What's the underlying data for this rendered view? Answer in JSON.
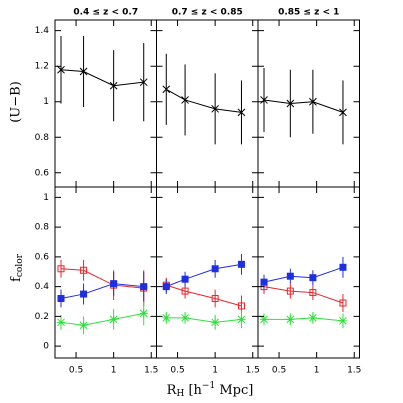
{
  "xlabel": [
    "R",
    "H",
    " [h",
    "−1",
    " Mpc]"
  ],
  "top_ylabel": "(U−B)",
  "bottom_ylabel": [
    "f",
    "color"
  ],
  "chart_data": [
    {
      "type": "line",
      "title": "0.4 ≤ z < 0.7",
      "x": [
        0.3,
        0.6,
        1.0,
        1.4
      ],
      "xlim": [
        0.22,
        1.57
      ],
      "ylim": [
        0.52,
        1.46
      ],
      "xticks": [
        0.5,
        1,
        1.5
      ],
      "yticks": [
        0.6,
        0.8,
        1,
        1.2,
        1.4
      ],
      "show_xticklabels": false,
      "show_yticklabels": true,
      "series": [
        {
          "color": "#000000",
          "marker": "x",
          "values": [
            1.18,
            1.17,
            1.09,
            1.11
          ],
          "errors": [
            0.19,
            0.2,
            0.2,
            0.22
          ]
        }
      ]
    },
    {
      "type": "line",
      "title": "0.7 ≤ z < 0.85",
      "x": [
        0.35,
        0.6,
        1.0,
        1.35
      ],
      "xlim": [
        0.22,
        1.57
      ],
      "ylim": [
        0.52,
        1.46
      ],
      "xticks": [
        0.5,
        1,
        1.5
      ],
      "yticks": [
        0.6,
        0.8,
        1,
        1.2,
        1.4
      ],
      "show_xticklabels": false,
      "show_yticklabels": false,
      "series": [
        {
          "color": "#000000",
          "marker": "x",
          "values": [
            1.07,
            1.01,
            0.96,
            0.94
          ],
          "errors": [
            0.2,
            0.2,
            0.2,
            0.18
          ]
        }
      ]
    },
    {
      "type": "line",
      "title": "0.85 ≤ z < 1",
      "x": [
        0.3,
        0.65,
        0.95,
        1.35
      ],
      "xlim": [
        0.22,
        1.57
      ],
      "ylim": [
        0.52,
        1.46
      ],
      "xticks": [
        0.5,
        1,
        1.5
      ],
      "yticks": [
        0.6,
        0.8,
        1,
        1.2,
        1.4
      ],
      "show_xticklabels": false,
      "show_yticklabels": false,
      "series": [
        {
          "color": "#000000",
          "marker": "x",
          "values": [
            1.01,
            0.99,
            1.0,
            0.94
          ],
          "errors": [
            0.18,
            0.19,
            0.18,
            0.18
          ]
        }
      ]
    },
    {
      "type": "line",
      "x": [
        0.3,
        0.6,
        1.0,
        1.4
      ],
      "xlim": [
        0.22,
        1.57
      ],
      "ylim": [
        -0.08,
        1.07
      ],
      "xticks": [
        0.5,
        1,
        1.5
      ],
      "yticks": [
        0,
        0.2,
        0.4,
        0.6,
        0.8,
        1
      ],
      "show_xticklabels": true,
      "show_yticklabels": true,
      "series": [
        {
          "color": "#e8262b",
          "marker": "open-square",
          "values": [
            0.52,
            0.51,
            0.41,
            0.39
          ],
          "errors": [
            0.06,
            0.07,
            0.1,
            0.12
          ]
        },
        {
          "color": "#1f2ee0",
          "marker": "filled-square",
          "values": [
            0.32,
            0.35,
            0.42,
            0.4
          ],
          "errors": [
            0.06,
            0.07,
            0.08,
            0.1
          ]
        },
        {
          "color": "#2ee03a",
          "marker": "asterisk",
          "values": [
            0.16,
            0.14,
            0.18,
            0.22
          ],
          "errors": [
            0.05,
            0.06,
            0.07,
            0.08
          ]
        }
      ]
    },
    {
      "type": "line",
      "x": [
        0.35,
        0.6,
        1.0,
        1.35
      ],
      "xlim": [
        0.22,
        1.57
      ],
      "ylim": [
        -0.08,
        1.07
      ],
      "xticks": [
        0.5,
        1,
        1.5
      ],
      "yticks": [
        0,
        0.2,
        0.4,
        0.6,
        0.8,
        1
      ],
      "show_xticklabels": true,
      "show_yticklabels": false,
      "series": [
        {
          "color": "#e8262b",
          "marker": "open-square",
          "values": [
            0.41,
            0.37,
            0.32,
            0.27
          ],
          "errors": [
            0.05,
            0.05,
            0.06,
            0.07
          ]
        },
        {
          "color": "#1f2ee0",
          "marker": "filled-square",
          "values": [
            0.4,
            0.45,
            0.52,
            0.55
          ],
          "errors": [
            0.05,
            0.05,
            0.06,
            0.07
          ]
        },
        {
          "color": "#2ee03a",
          "marker": "asterisk",
          "values": [
            0.19,
            0.19,
            0.16,
            0.18
          ],
          "errors": [
            0.04,
            0.04,
            0.05,
            0.06
          ]
        }
      ]
    },
    {
      "type": "line",
      "x": [
        0.3,
        0.65,
        0.95,
        1.35
      ],
      "xlim": [
        0.22,
        1.57
      ],
      "ylim": [
        -0.08,
        1.07
      ],
      "xticks": [
        0.5,
        1,
        1.5
      ],
      "yticks": [
        0,
        0.2,
        0.4,
        0.6,
        0.8,
        1
      ],
      "show_xticklabels": true,
      "show_yticklabels": false,
      "series": [
        {
          "color": "#e8262b",
          "marker": "open-square",
          "values": [
            0.4,
            0.37,
            0.36,
            0.29
          ],
          "errors": [
            0.05,
            0.05,
            0.05,
            0.06
          ]
        },
        {
          "color": "#1f2ee0",
          "marker": "filled-square",
          "values": [
            0.43,
            0.47,
            0.46,
            0.53
          ],
          "errors": [
            0.05,
            0.05,
            0.05,
            0.07
          ]
        },
        {
          "color": "#2ee03a",
          "marker": "asterisk",
          "values": [
            0.18,
            0.18,
            0.19,
            0.17
          ],
          "errors": [
            0.04,
            0.04,
            0.04,
            0.05
          ]
        }
      ]
    }
  ]
}
